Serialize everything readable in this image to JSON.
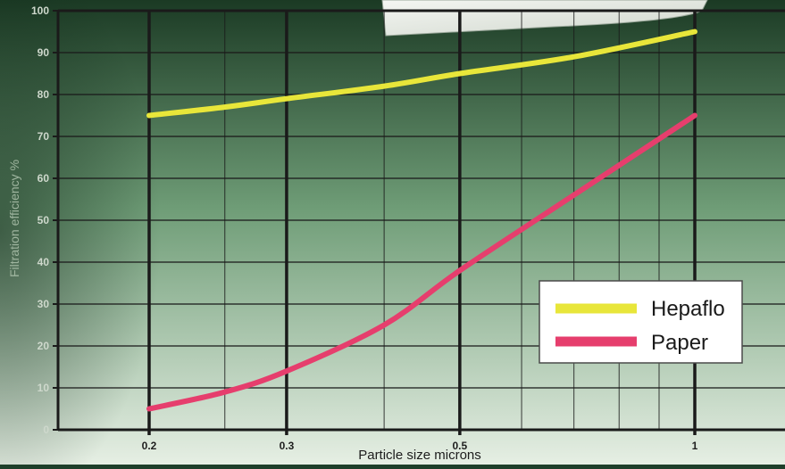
{
  "chart_data": {
    "type": "line",
    "title": "",
    "xlabel": "Particle size microns",
    "ylabel": "Filtration efficiency %",
    "x_ticks": [
      "0.2",
      "0.3",
      "0.5",
      "1"
    ],
    "y_ticks": [
      "0",
      "10",
      "20",
      "30",
      "40",
      "50",
      "60",
      "70",
      "80",
      "90",
      "100"
    ],
    "ylim": [
      0,
      100
    ],
    "grid": true,
    "legend_position": "bottom-right",
    "series": [
      {
        "name": "Hepaflo",
        "color": "#e8e63a",
        "x": [
          0.2,
          0.25,
          0.3,
          0.4,
          0.5,
          0.7,
          1.0
        ],
        "y": [
          75,
          77,
          79,
          82,
          85,
          89,
          95
        ]
      },
      {
        "name": "Paper",
        "color": "#e63e6d",
        "x": [
          0.2,
          0.25,
          0.3,
          0.4,
          0.5,
          0.7,
          1.0
        ],
        "y": [
          5,
          9,
          14,
          25,
          38,
          56,
          75
        ]
      }
    ]
  },
  "colors": {
    "background_top": "#1b3a24",
    "background_mid": "#7aa882",
    "background_bottom": "#e4eee3",
    "grid": "#1a1a1a",
    "tick_label": "#1f1f1f"
  }
}
